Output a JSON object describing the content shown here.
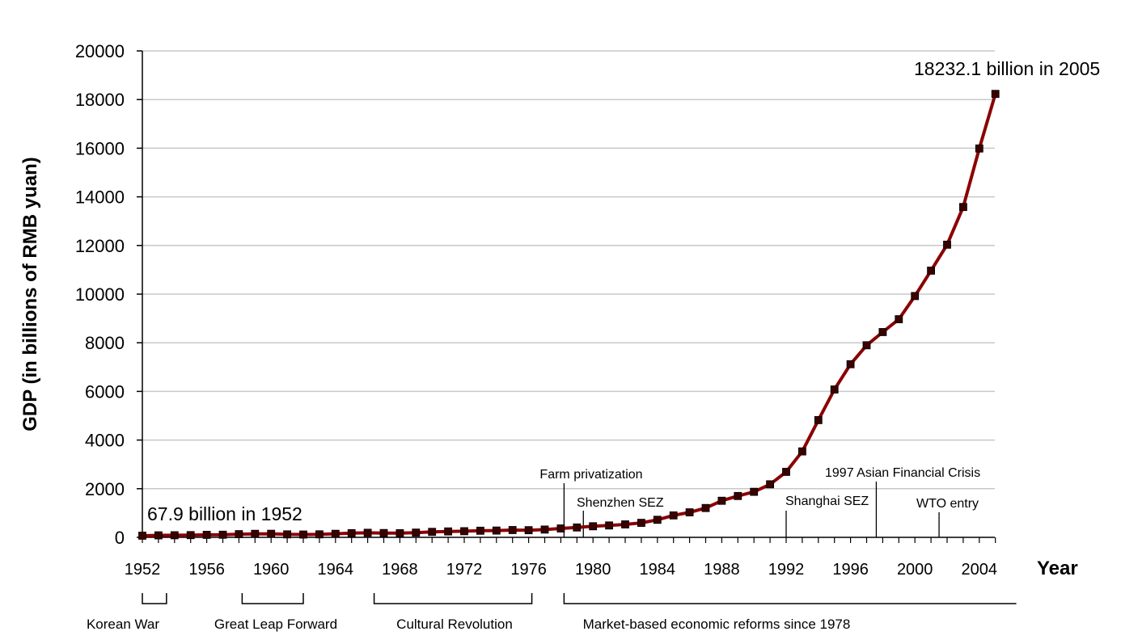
{
  "chart_data": {
    "type": "line",
    "title": "",
    "xlabel": "Year",
    "ylabel": "GDP (in billions of RMB yuan)",
    "xlim": [
      1952,
      2005
    ],
    "ylim": [
      0,
      20000
    ],
    "x_ticks": [
      "1952",
      "1956",
      "1960",
      "1964",
      "1968",
      "1972",
      "1976",
      "1980",
      "1984",
      "1988",
      "1992",
      "1996",
      "2000",
      "2004"
    ],
    "y_ticks": [
      "0",
      "2000",
      "4000",
      "6000",
      "8000",
      "10000",
      "12000",
      "14000",
      "16000",
      "18000",
      "20000"
    ],
    "grid": true,
    "legend": "none",
    "series_color": "#8b0000",
    "marker_color": "#3a0000",
    "series": [
      {
        "x": [
          1952,
          1953,
          1954,
          1955,
          1956,
          1957,
          1958,
          1959,
          1960,
          1961,
          1962,
          1963,
          1964,
          1965,
          1966,
          1967,
          1968,
          1969,
          1970,
          1971,
          1972,
          1973,
          1974,
          1975,
          1976,
          1977,
          1978,
          1979,
          1980,
          1981,
          1982,
          1983,
          1984,
          1985,
          1986,
          1987,
          1988,
          1989,
          1990,
          1991,
          1992,
          1993,
          1994,
          1995,
          1996,
          1997,
          1998,
          1999,
          2000,
          2001,
          2002,
          2003,
          2004,
          2005
        ],
        "values": [
          67.9,
          82,
          86,
          91,
          103,
          107,
          131,
          144,
          146,
          122,
          115,
          123,
          145,
          172,
          187,
          177,
          172,
          194,
          225,
          243,
          252,
          272,
          279,
          300,
          294,
          320,
          365,
          406,
          455,
          489,
          532,
          596,
          721,
          902,
          1028,
          1206,
          1504,
          1700,
          1872,
          2181,
          2692,
          3533,
          4820,
          6079,
          7118,
          7897,
          8440,
          8968,
          9921,
          10966,
          12033,
          13582,
          15988,
          18232.1
        ]
      }
    ],
    "annotations": [
      {
        "text": "67.9 billion in 1952"
      },
      {
        "text": "18232.1 billion in 2005"
      },
      {
        "text": "Farm privatization",
        "year": 1978.2
      },
      {
        "text": "Shenzhen SEZ",
        "year": 1979.4
      },
      {
        "text": "Shanghai SEZ",
        "year": 1992
      },
      {
        "text": "1997 Asian Financial Crisis",
        "year": 1997.6
      },
      {
        "text": "WTO entry",
        "year": 2001.5
      }
    ],
    "periods": [
      {
        "label": "Korean War",
        "start": 1952,
        "end": 1953.5
      },
      {
        "label": "Great Leap Forward",
        "start": 1958.2,
        "end": 1962
      },
      {
        "label": "Cultural Revolution",
        "start": 1966.4,
        "end": 1976.2
      },
      {
        "label": "Market-based economic reforms since 1978",
        "start": 1978.2,
        "end": 2006.3
      }
    ]
  }
}
